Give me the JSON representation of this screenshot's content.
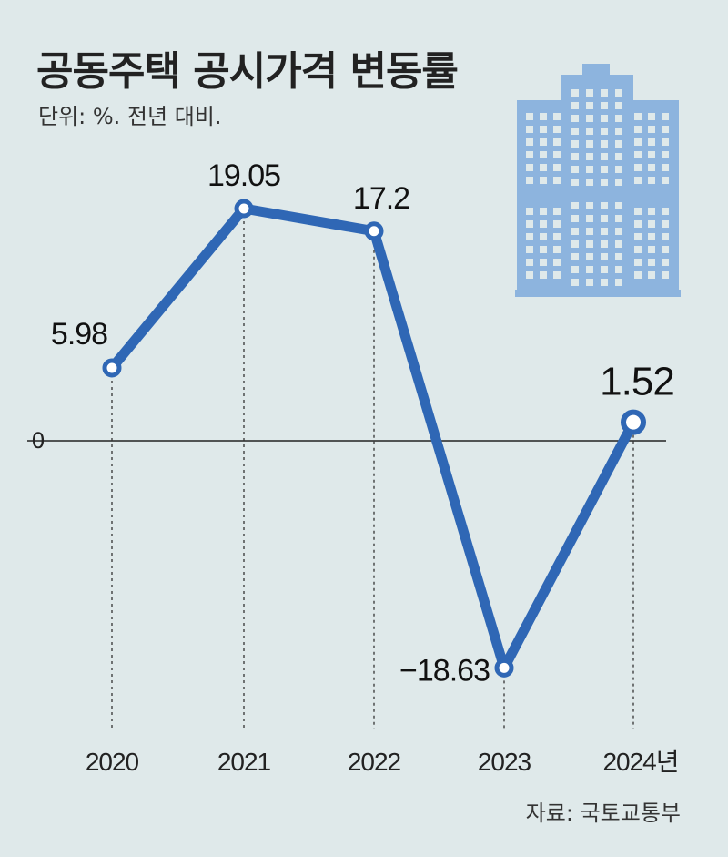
{
  "header": {
    "title": "공동주택 공시가격 변동률",
    "subtitle": "단위: %. 전년 대비."
  },
  "source": "자료: 국토교통부",
  "colors": {
    "background": "#dfe9ea",
    "line": "#2f67b5",
    "building": "#8db4de",
    "axis": "#222222"
  },
  "chart_data": {
    "type": "line",
    "title": "공동주택 공시가격 변동률",
    "subtitle": "단위: %. 전년 대비.",
    "x": [
      "2020",
      "2021",
      "2022",
      "2023",
      "2024년"
    ],
    "series": [
      {
        "values": [
          5.98,
          19.05,
          17.2,
          -18.63,
          1.52
        ]
      }
    ],
    "data_labels": [
      "5.98",
      "19.05",
      "17.2",
      "−18.63",
      "1.52"
    ],
    "y_tick_labels": [
      "0"
    ],
    "y_reference": 0,
    "ylim": [
      -22,
      25
    ],
    "grid": false,
    "legend": "none",
    "icon": "apartment-building-icon"
  }
}
